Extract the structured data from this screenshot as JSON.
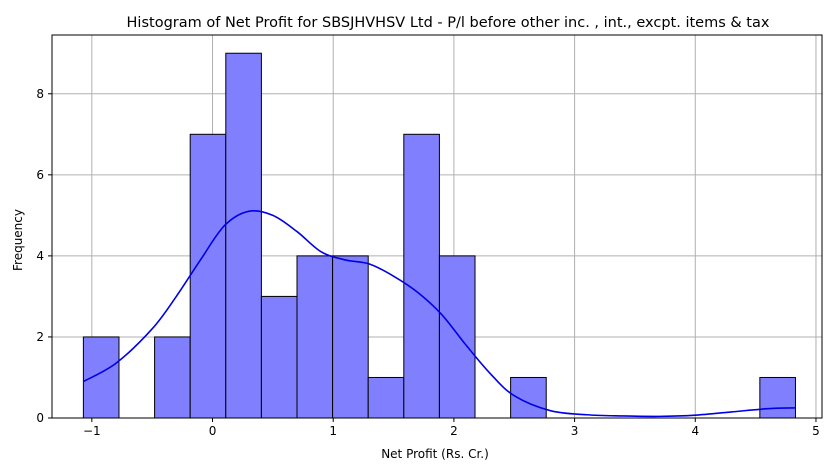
{
  "chart_data": {
    "type": "bar",
    "title": "Histogram of Net Profit for SBSJHVHSV Ltd - P/l before other inc. , int., excpt. items & tax",
    "xlabel": "Net Profit (Rs. Cr.)",
    "ylabel": "Frequency",
    "xlim": [
      -1.33,
      5.05
    ],
    "ylim": [
      0,
      9.45
    ],
    "xticks": [
      -1,
      0,
      1,
      2,
      3,
      4,
      5
    ],
    "yticks": [
      0,
      2,
      4,
      6,
      8
    ],
    "grid": true,
    "bar_color": "#8080ff",
    "kde_color": "#0000e6",
    "bins": [
      {
        "x0": -1.07,
        "x1": -0.775,
        "count": 2
      },
      {
        "x0": -0.775,
        "x1": -0.48,
        "count": 0
      },
      {
        "x0": -0.48,
        "x1": -0.185,
        "count": 2
      },
      {
        "x0": -0.185,
        "x1": 0.11,
        "count": 7
      },
      {
        "x0": 0.11,
        "x1": 0.405,
        "count": 9
      },
      {
        "x0": 0.405,
        "x1": 0.7,
        "count": 3
      },
      {
        "x0": 0.7,
        "x1": 0.995,
        "count": 4
      },
      {
        "x0": 0.995,
        "x1": 1.29,
        "count": 4
      },
      {
        "x0": 1.29,
        "x1": 1.585,
        "count": 1
      },
      {
        "x0": 1.585,
        "x1": 1.88,
        "count": 7
      },
      {
        "x0": 1.88,
        "x1": 2.175,
        "count": 4
      },
      {
        "x0": 2.175,
        "x1": 2.47,
        "count": 0
      },
      {
        "x0": 2.47,
        "x1": 2.765,
        "count": 1
      },
      {
        "x0": 2.765,
        "x1": 3.06,
        "count": 0
      },
      {
        "x0": 3.06,
        "x1": 3.355,
        "count": 0
      },
      {
        "x0": 3.355,
        "x1": 3.65,
        "count": 0
      },
      {
        "x0": 3.65,
        "x1": 3.945,
        "count": 0
      },
      {
        "x0": 3.945,
        "x1": 4.24,
        "count": 0
      },
      {
        "x0": 4.24,
        "x1": 4.535,
        "count": 0
      },
      {
        "x0": 4.535,
        "x1": 4.83,
        "count": 1
      }
    ],
    "kde": {
      "x": [
        -1.07,
        -0.8,
        -0.5,
        -0.3,
        -0.1,
        0.1,
        0.3,
        0.5,
        0.7,
        0.9,
        1.1,
        1.3,
        1.5,
        1.7,
        1.9,
        2.1,
        2.3,
        2.5,
        2.8,
        3.1,
        3.4,
        3.7,
        4.0,
        4.3,
        4.6,
        4.83
      ],
      "y": [
        0.9,
        1.35,
        2.2,
        3.0,
        3.9,
        4.75,
        5.1,
        5.0,
        4.6,
        4.1,
        3.9,
        3.8,
        3.5,
        3.1,
        2.55,
        1.8,
        1.1,
        0.55,
        0.18,
        0.08,
        0.05,
        0.04,
        0.07,
        0.15,
        0.23,
        0.25
      ]
    }
  }
}
